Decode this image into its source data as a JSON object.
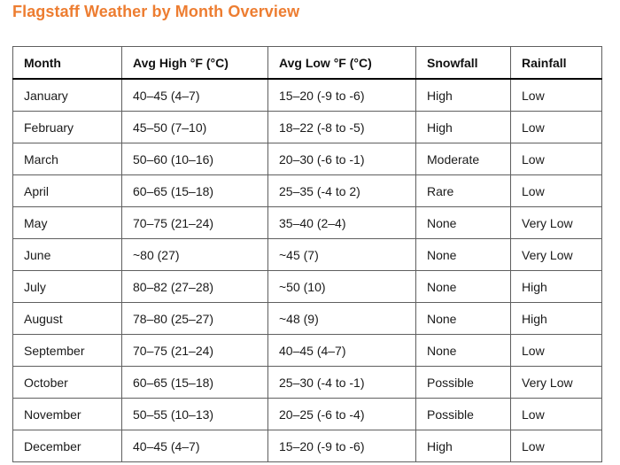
{
  "title": "Flagstaff Weather by Month Overview",
  "table": {
    "columns": [
      "Month",
      "Avg High °F (°C)",
      "Avg Low °F (°C)",
      "Snowfall",
      "Rainfall"
    ],
    "rows": [
      [
        "January",
        "40–45 (4–7)",
        "15–20 (-9 to -6)",
        "High",
        "Low"
      ],
      [
        "February",
        "45–50 (7–10)",
        "18–22 (-8 to -5)",
        "High",
        "Low"
      ],
      [
        "March",
        "50–60 (10–16)",
        "20–30 (-6 to -1)",
        "Moderate",
        "Low"
      ],
      [
        "April",
        "60–65 (15–18)",
        "25–35 (-4 to 2)",
        "Rare",
        "Low"
      ],
      [
        "May",
        "70–75 (21–24)",
        "35–40 (2–4)",
        "None",
        "Very Low"
      ],
      [
        "June",
        "~80 (27)",
        "~45 (7)",
        "None",
        "Very Low"
      ],
      [
        "July",
        "80–82 (27–28)",
        "~50 (10)",
        "None",
        "High"
      ],
      [
        "August",
        "78–80 (25–27)",
        "~48 (9)",
        "None",
        "High"
      ],
      [
        "September",
        "70–75 (21–24)",
        "40–45 (4–7)",
        "None",
        "Low"
      ],
      [
        "October",
        "60–65 (15–18)",
        "25–30 (-4 to -1)",
        "Possible",
        "Very Low"
      ],
      [
        "November",
        "50–55 (10–13)",
        "20–25 (-6 to -4)",
        "Possible",
        "Low"
      ],
      [
        "December",
        "40–45 (4–7)",
        "15–20 (-9 to -6)",
        "High",
        "Low"
      ]
    ]
  },
  "colors": {
    "title": "#ED7D31",
    "body_text": "#1a1a1a",
    "grid_line": "#5f5f5f",
    "header_underline": "#000000",
    "background": "#ffffff"
  },
  "chart_data": {
    "type": "table",
    "title": "Flagstaff Weather by Month Overview",
    "columns": [
      "Month",
      "Avg High °F (°C)",
      "Avg Low °F (°C)",
      "Snowfall",
      "Rainfall"
    ],
    "rows": [
      [
        "January",
        "40–45 (4–7)",
        "15–20 (-9 to -6)",
        "High",
        "Low"
      ],
      [
        "February",
        "45–50 (7–10)",
        "18–22 (-8 to -5)",
        "High",
        "Low"
      ],
      [
        "March",
        "50–60 (10–16)",
        "20–30 (-6 to -1)",
        "Moderate",
        "Low"
      ],
      [
        "April",
        "60–65 (15–18)",
        "25–35 (-4 to 2)",
        "Rare",
        "Low"
      ],
      [
        "May",
        "70–75 (21–24)",
        "35–40 (2–4)",
        "None",
        "Very Low"
      ],
      [
        "June",
        "~80 (27)",
        "~45 (7)",
        "None",
        "Very Low"
      ],
      [
        "July",
        "80–82 (27–28)",
        "~50 (10)",
        "None",
        "High"
      ],
      [
        "August",
        "78–80 (25–27)",
        "~48 (9)",
        "None",
        "High"
      ],
      [
        "September",
        "70–75 (21–24)",
        "40–45 (4–7)",
        "None",
        "Low"
      ],
      [
        "October",
        "60–65 (15–18)",
        "25–30 (-4 to -1)",
        "Possible",
        "Very Low"
      ],
      [
        "November",
        "50–55 (10–13)",
        "20–25 (-6 to -4)",
        "Possible",
        "Low"
      ],
      [
        "December",
        "40–45 (4–7)",
        "15–20 (-9 to -6)",
        "High",
        "Low"
      ]
    ]
  }
}
